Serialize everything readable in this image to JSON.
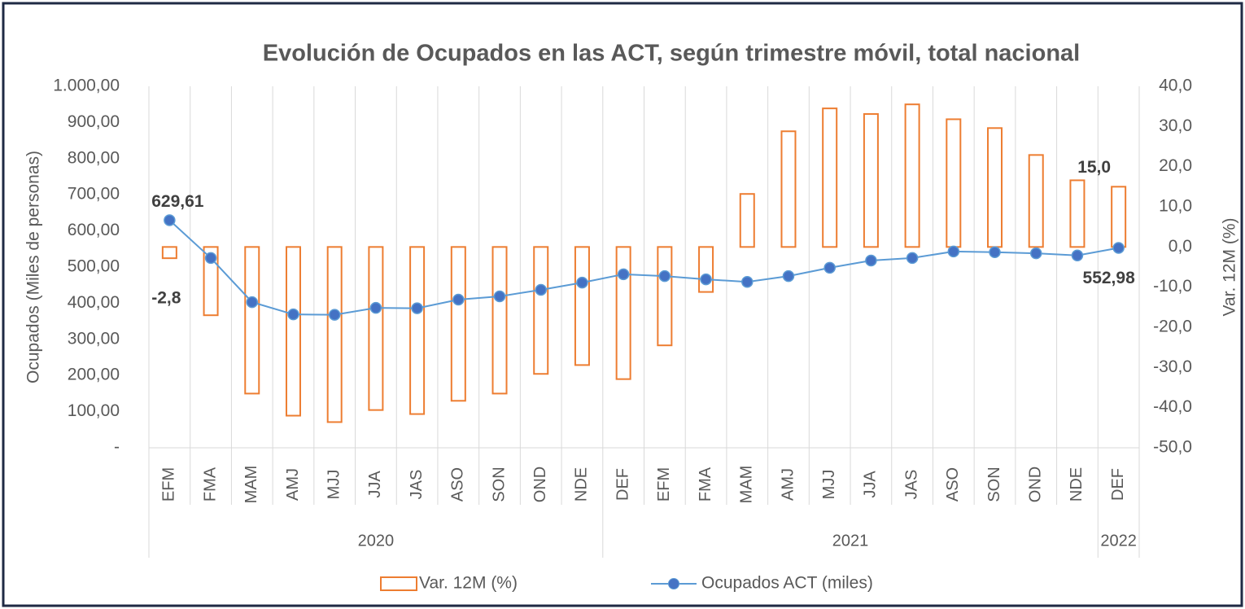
{
  "chart_data": {
    "type": "bar-line",
    "title": "Evolución de Ocupados en las ACT, según trimestre móvil, total nacional",
    "y_label": "Ocupados (Miles de personas)",
    "y2_label": "Var. 12M (%)",
    "categories": [
      "EFM",
      "FMA",
      "MAM",
      "AMJ",
      "MJJ",
      "JJA",
      "JAS",
      "ASO",
      "SON",
      "OND",
      "NDE",
      "DEF",
      "EFM",
      "FMA",
      "MAM",
      "AMJ",
      "MJJ",
      "JJA",
      "JAS",
      "ASO",
      "SON",
      "OND",
      "NDE",
      "DEF"
    ],
    "category_groups": [
      "2020",
      null,
      null,
      null,
      null,
      null,
      null,
      null,
      null,
      null,
      null,
      "2021",
      null,
      null,
      null,
      null,
      null,
      null,
      null,
      null,
      null,
      null,
      null,
      "2022"
    ],
    "series": [
      {
        "name": "Var. 12M (%)",
        "kind": "bar",
        "axis": "y2",
        "color": "#ed7d31",
        "values": [
          -2.8,
          -17.0,
          -36.5,
          -42.0,
          -43.6,
          -40.6,
          -41.6,
          -38.3,
          -36.5,
          -31.6,
          -29.4,
          -32.9,
          -24.5,
          -11.2,
          13.2,
          28.8,
          34.5,
          33.1,
          35.5,
          31.8,
          29.6,
          22.9,
          16.6,
          15.0
        ],
        "value_labels": [
          "-2,8",
          null,
          null,
          null,
          null,
          null,
          null,
          null,
          null,
          null,
          null,
          null,
          null,
          null,
          null,
          null,
          null,
          null,
          null,
          null,
          null,
          null,
          null,
          "15,0"
        ]
      },
      {
        "name": "Ocupados ACT (miles)",
        "kind": "line",
        "axis": "y",
        "color": "#5b9bd5",
        "values": [
          629.61,
          525,
          403,
          369,
          368,
          387,
          386,
          410,
          419,
          437,
          457,
          480,
          475,
          466,
          459,
          475,
          498,
          518,
          525,
          543,
          541,
          538,
          532,
          552.98
        ],
        "value_labels": [
          "629,61",
          null,
          null,
          null,
          null,
          null,
          null,
          null,
          null,
          null,
          null,
          null,
          null,
          null,
          null,
          null,
          null,
          null,
          null,
          null,
          null,
          null,
          null,
          "552,98"
        ]
      }
    ],
    "ylim": [
      0,
      1000
    ],
    "yticks": [
      {
        "value": 0,
        "label": "-"
      },
      {
        "value": 100,
        "label": "100,00"
      },
      {
        "value": 200,
        "label": "200,00"
      },
      {
        "value": 300,
        "label": "300,00"
      },
      {
        "value": 400,
        "label": "400,00"
      },
      {
        "value": 500,
        "label": "500,00"
      },
      {
        "value": 600,
        "label": "600,00"
      },
      {
        "value": 700,
        "label": "700,00"
      },
      {
        "value": 800,
        "label": "800,00"
      },
      {
        "value": 900,
        "label": "900,00"
      },
      {
        "value": 1000,
        "label": "1.000,00"
      }
    ],
    "y2lim": [
      -50,
      40
    ],
    "y2ticks": [
      {
        "value": -50,
        "label": "-50,0"
      },
      {
        "value": -40,
        "label": "-40,0"
      },
      {
        "value": -30,
        "label": "-30,0"
      },
      {
        "value": -20,
        "label": "-20,0"
      },
      {
        "value": -10,
        "label": "-10,0"
      },
      {
        "value": 0,
        "label": "0,0"
      },
      {
        "value": 10,
        "label": "10,0"
      },
      {
        "value": 20,
        "label": "20,0"
      },
      {
        "value": 30,
        "label": "30,0"
      },
      {
        "value": 40,
        "label": "40,0"
      }
    ],
    "legend": "bottom"
  }
}
